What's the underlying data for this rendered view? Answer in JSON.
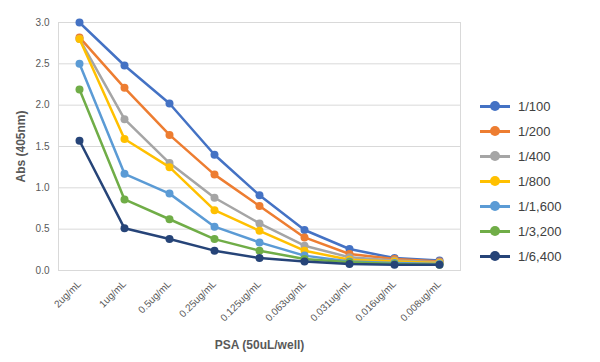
{
  "chart_data": {
    "type": "line",
    "x_label": "PSA (50uL/well)",
    "y_label": "Abs (405nm)",
    "categories": [
      "2ug/mL",
      "1ug/mL",
      "0.5ug/mL",
      "0.25ug/mL",
      "0.125ug/mL",
      "0.063ug/mL",
      "0.031ug/mL",
      "0.016ug/mL",
      "0.008ug/mL"
    ],
    "series": [
      {
        "name": "1/100",
        "color": "#4472c4",
        "values": [
          3.0,
          2.48,
          2.02,
          1.4,
          0.91,
          0.49,
          0.26,
          0.15,
          0.12
        ]
      },
      {
        "name": "1/200",
        "color": "#ed7d31",
        "values": [
          2.82,
          2.21,
          1.64,
          1.16,
          0.78,
          0.4,
          0.2,
          0.14,
          0.11
        ]
      },
      {
        "name": "1/400",
        "color": "#a5a5a5",
        "values": [
          2.8,
          1.83,
          1.3,
          0.88,
          0.57,
          0.3,
          0.16,
          0.12,
          0.1
        ]
      },
      {
        "name": "1/800",
        "color": "#ffc000",
        "values": [
          2.8,
          1.59,
          1.25,
          0.73,
          0.48,
          0.24,
          0.13,
          0.11,
          0.09
        ]
      },
      {
        "name": "1/1,600",
        "color": "#5b9bd5",
        "values": [
          2.5,
          1.17,
          0.93,
          0.53,
          0.34,
          0.18,
          0.11,
          0.09,
          0.08
        ]
      },
      {
        "name": "1/3,200",
        "color": "#70ad47",
        "values": [
          2.19,
          0.86,
          0.62,
          0.38,
          0.24,
          0.14,
          0.1,
          0.08,
          0.07
        ]
      },
      {
        "name": "1/6,400",
        "color": "#264478",
        "values": [
          1.57,
          0.51,
          0.38,
          0.24,
          0.15,
          0.11,
          0.08,
          0.07,
          0.07
        ]
      }
    ],
    "ylim": [
      0,
      3.0
    ],
    "yticks": [
      {
        "value": 0,
        "label": "0.0"
      },
      0.5,
      {
        "value": 1,
        "label": "1.0"
      },
      1.5,
      {
        "value": 2,
        "label": "2.0"
      },
      2.5,
      {
        "value": 3,
        "label": "3.0"
      }
    ],
    "grid": true,
    "legend": "right",
    "marker": "circle"
  }
}
